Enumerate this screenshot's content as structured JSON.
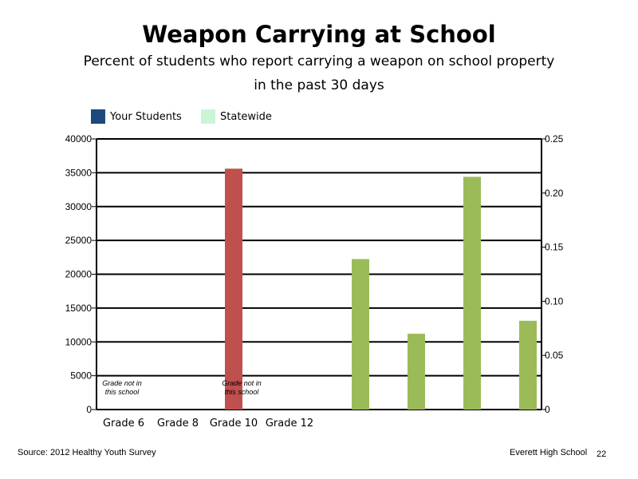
{
  "header": {
    "title": "Weapon Carrying at School",
    "subtitle_line1": "Percent of students who report carrying a weapon on school property",
    "subtitle_line2": "in the past 30 days"
  },
  "legend": {
    "items": [
      {
        "label": "Your Students",
        "color": "#1f497d"
      },
      {
        "label": "Statewide",
        "color": "#ccf5d5"
      }
    ]
  },
  "chart_data": {
    "type": "bar",
    "categories": [
      "Grade 6",
      "Grade 8",
      "Grade 10",
      "Grade 12"
    ],
    "left_axis": {
      "ylim": [
        0,
        40000
      ],
      "ticks": [
        "0",
        "5000",
        "10000",
        "15000",
        "20000",
        "25000",
        "30000",
        "35000",
        "40000"
      ]
    },
    "right_axis": {
      "ylim": [
        0,
        0.25
      ],
      "ticks": [
        "0",
        "0.05",
        "0.10",
        "0.15",
        "0.20",
        "0.25"
      ]
    },
    "grid": true,
    "legend_position": "top-left",
    "bars": [
      {
        "axis": "left",
        "value": 35600,
        "color": "#c0504d"
      },
      {
        "axis": "right",
        "value": 0.139,
        "color": "#9bbb59"
      },
      {
        "axis": "right",
        "value": 0.07,
        "color": "#9bbb59"
      },
      {
        "axis": "right",
        "value": 0.215,
        "color": "#9bbb59"
      },
      {
        "axis": "right",
        "value": 0.082,
        "color": "#9bbb59"
      }
    ],
    "annotations": [
      {
        "line1": "Grade not in",
        "line2": "this school"
      },
      {
        "line1": "Grade not in",
        "line2": "this school"
      }
    ]
  },
  "footer": {
    "source": "Source: 2012 Healthy Youth Survey",
    "school": "Everett High School",
    "page": "22"
  }
}
